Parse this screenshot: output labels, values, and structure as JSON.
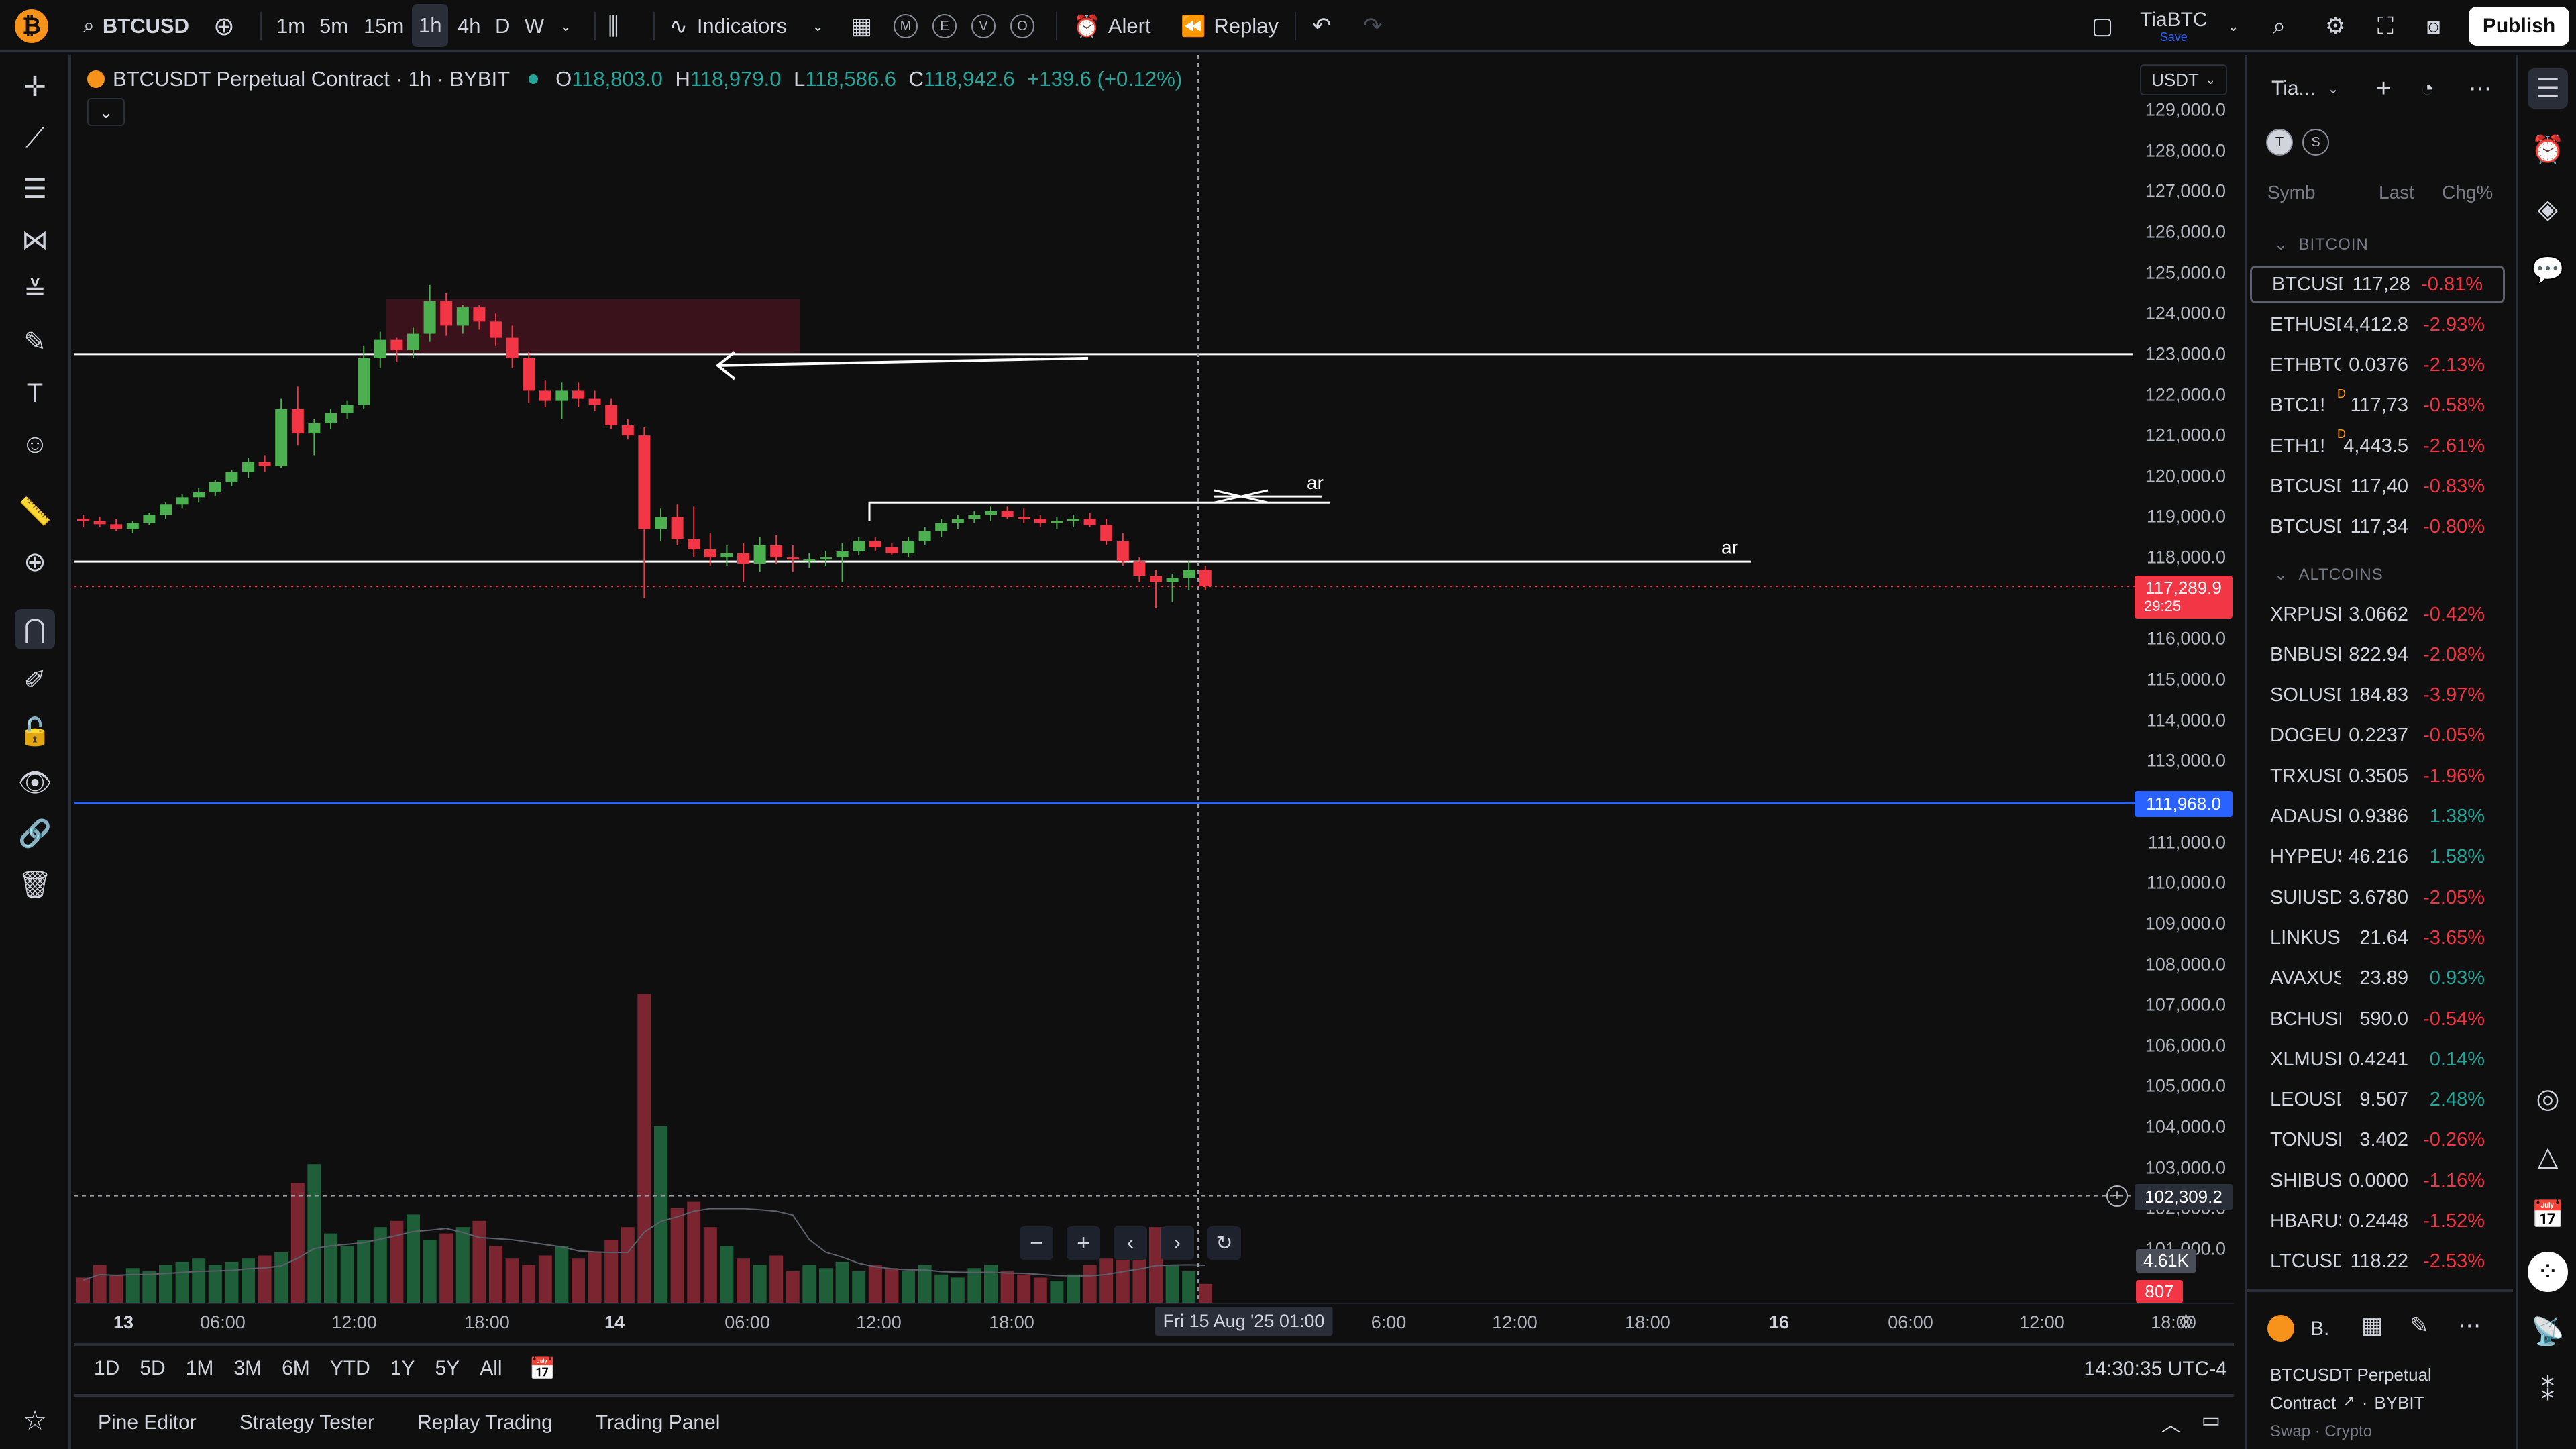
{
  "colors": {
    "up": "#26a69a",
    "down": "#f23645",
    "bg": "#0f0f0f",
    "accent": "#2962ff"
  },
  "topbar": {
    "symbol": "BTCUSD",
    "intervals": [
      "1m",
      "5m",
      "15m",
      "1h",
      "4h",
      "D",
      "W"
    ],
    "selected_interval": "1h",
    "indicators_label": "Indicators",
    "layout_buttons": [
      "M",
      "E",
      "V",
      "O"
    ],
    "alert_label": "Alert",
    "replay_label": "Replay",
    "layout_name": "TiaBTC",
    "layout_status": "Save",
    "publish_label": "Publish"
  },
  "chart": {
    "title": "BTCUSDT Perpetual Contract · 1h · BYBIT",
    "ohlc": {
      "o_label": "O",
      "o": "118,803.0",
      "h_label": "H",
      "h": "118,979.0",
      "l_label": "L",
      "l": "118,586.6",
      "c_label": "C",
      "c": "118,942.6",
      "chg": "+139.6 (+0.12%)"
    },
    "currency": "USDT",
    "price_ticks": [
      "129,000.0",
      "128,000.0",
      "127,000.0",
      "126,000.0",
      "125,000.0",
      "124,000.0",
      "123,000.0",
      "122,000.0",
      "121,000.0",
      "120,000.0",
      "119,000.0",
      "118,000.0",
      "117,000.0",
      "116,000.0",
      "115,000.0",
      "114,000.0",
      "113,000.0",
      "112,000.0",
      "111,000.0",
      "110,000.0",
      "109,000.0",
      "108,000.0",
      "107,000.0",
      "106,000.0",
      "105,000.0",
      "104,000.0",
      "103,000.0",
      "102,000.0",
      "101,000.0"
    ],
    "last_price": "117,289.9",
    "countdown": "29:25",
    "blue_line_price": "111,968.0",
    "crosshair_price": "102,309.2",
    "volume_label": "4.61K",
    "volume_value": "807",
    "drawing_labels": [
      "ar",
      "ar"
    ],
    "time_ticks": [
      {
        "t": "13",
        "bold": true
      },
      {
        "t": "06:00"
      },
      {
        "t": "12:00"
      },
      {
        "t": "18:00"
      },
      {
        "t": "14",
        "bold": true
      },
      {
        "t": "06:00"
      },
      {
        "t": "12:00"
      },
      {
        "t": "18:00"
      },
      {
        "t": "6:00"
      },
      {
        "t": "12:00"
      },
      {
        "t": "18:00"
      },
      {
        "t": "16",
        "bold": true
      },
      {
        "t": "06:00"
      },
      {
        "t": "12:00"
      },
      {
        "t": "18:00"
      }
    ],
    "crosshair_time": "Fri 15 Aug '25   01:00"
  },
  "chart_data": {
    "type": "candlestick",
    "interval": "1h",
    "ylim": [
      101000,
      129000
    ],
    "ohlc": [
      [
        118950,
        119050,
        118750,
        118900
      ],
      [
        118900,
        119000,
        118750,
        118820
      ],
      [
        118820,
        118950,
        118650,
        118700
      ],
      [
        118700,
        118900,
        118600,
        118850
      ],
      [
        118850,
        119100,
        118800,
        119050
      ],
      [
        119050,
        119350,
        118950,
        119300
      ],
      [
        119300,
        119550,
        119200,
        119480
      ],
      [
        119480,
        119700,
        119350,
        119600
      ],
      [
        119600,
        119900,
        119500,
        119850
      ],
      [
        119850,
        120150,
        119750,
        120100
      ],
      [
        120100,
        120450,
        119950,
        120350
      ],
      [
        120350,
        120500,
        120100,
        120250
      ],
      [
        120250,
        121900,
        120200,
        121650
      ],
      [
        121650,
        122200,
        120750,
        121050
      ],
      [
        121050,
        121400,
        120500,
        121300
      ],
      [
        121300,
        121650,
        121150,
        121550
      ],
      [
        121550,
        121850,
        121400,
        121750
      ],
      [
        121750,
        123200,
        121650,
        122900
      ],
      [
        122900,
        123550,
        122650,
        123350
      ],
      [
        123350,
        123400,
        122800,
        123100
      ],
      [
        123100,
        123650,
        122900,
        123500
      ],
      [
        123500,
        124700,
        123300,
        124300
      ],
      [
        124300,
        124500,
        123450,
        123700
      ],
      [
        123700,
        124200,
        123500,
        124150
      ],
      [
        124150,
        124200,
        123600,
        123800
      ],
      [
        123800,
        124000,
        123200,
        123400
      ],
      [
        123400,
        123700,
        122650,
        122900
      ],
      [
        122900,
        123050,
        121800,
        122100
      ],
      [
        122100,
        122350,
        121700,
        121850
      ],
      [
        121850,
        122300,
        121400,
        122100
      ],
      [
        122100,
        122300,
        121700,
        121900
      ],
      [
        121900,
        122100,
        121600,
        121750
      ],
      [
        121750,
        121900,
        121150,
        121250
      ],
      [
        121250,
        121400,
        120900,
        121000
      ],
      [
        121000,
        121200,
        117000,
        118700
      ],
      [
        118700,
        119200,
        118400,
        119000
      ],
      [
        119000,
        119300,
        118300,
        118450
      ],
      [
        118450,
        119250,
        118000,
        118200
      ],
      [
        118200,
        118600,
        117800,
        118000
      ],
      [
        118000,
        118300,
        117800,
        118100
      ],
      [
        118100,
        118350,
        117400,
        117850
      ],
      [
        117850,
        118500,
        117650,
        118300
      ],
      [
        118300,
        118550,
        117850,
        118000
      ],
      [
        118000,
        118300,
        117650,
        117950
      ],
      [
        117950,
        118100,
        117750,
        117950
      ],
      [
        117950,
        118150,
        117800,
        118000
      ],
      [
        118000,
        118350,
        117400,
        118150
      ],
      [
        118150,
        118500,
        118050,
        118400
      ],
      [
        118400,
        118500,
        118150,
        118250
      ],
      [
        118250,
        118350,
        118050,
        118100
      ],
      [
        118100,
        118500,
        118000,
        118400
      ],
      [
        118400,
        118750,
        118300,
        118650
      ],
      [
        118650,
        118950,
        118500,
        118850
      ],
      [
        118850,
        119050,
        118700,
        118950
      ],
      [
        118950,
        119150,
        118850,
        119050
      ],
      [
        119050,
        119250,
        118900,
        119150
      ],
      [
        119150,
        119250,
        118950,
        119000
      ],
      [
        119000,
        119200,
        118850,
        118950
      ],
      [
        118950,
        119050,
        118750,
        118850
      ],
      [
        118850,
        119000,
        118700,
        118900
      ],
      [
        118900,
        119050,
        118750,
        118950
      ],
      [
        118950,
        119100,
        118750,
        118800
      ],
      [
        118800,
        118950,
        118300,
        118400
      ],
      [
        118400,
        118600,
        117800,
        117900
      ],
      [
        117900,
        118000,
        117400,
        117550
      ],
      [
        117550,
        117700,
        116750,
        117400
      ],
      [
        117400,
        117600,
        116900,
        117500
      ],
      [
        117500,
        117900,
        117200,
        117700
      ],
      [
        117700,
        117800,
        117200,
        117290
      ]
    ],
    "volume": [
      8,
      12,
      9,
      11,
      10,
      12,
      13,
      14,
      12,
      13,
      14,
      15,
      16,
      38,
      44,
      22,
      18,
      20,
      24,
      26,
      28,
      20,
      22,
      24,
      26,
      18,
      14,
      12,
      15,
      18,
      14,
      16,
      20,
      24,
      98,
      56,
      30,
      32,
      24,
      18,
      14,
      12,
      15,
      10,
      12,
      11,
      13,
      10,
      12,
      11,
      10,
      12,
      9,
      8,
      11,
      12,
      10,
      9,
      8,
      7,
      9,
      12,
      14,
      18,
      20,
      24,
      12,
      10,
      6
    ],
    "series_names": []
  },
  "bottom": {
    "ranges": [
      "1D",
      "5D",
      "1M",
      "3M",
      "6M",
      "YTD",
      "1Y",
      "5Y",
      "All"
    ],
    "clock": "14:30:35 UTC-4",
    "tabs": [
      "Pine Editor",
      "Strategy Tester",
      "Replay Trading",
      "Trading Panel"
    ]
  },
  "watchlist": {
    "title": "Tia...",
    "tags": [
      "T",
      "S"
    ],
    "col_symbol": "Symb",
    "col_last": "Last",
    "col_chg": "Chg%",
    "section1": "BITCOIN",
    "section2": "ALTCOINS",
    "rows1": [
      {
        "s": "BTCUSD",
        "l": "117,28",
        "c": "-0.81%",
        "dir": "neg",
        "sel": true
      },
      {
        "s": "ETHUSD",
        "l": "4,412.8",
        "c": "-2.93%",
        "dir": "neg"
      },
      {
        "s": "ETHBTC",
        "l": "0.0376",
        "c": "-2.13%",
        "dir": "neg"
      },
      {
        "s": "BTC1!",
        "l": "117,73",
        "c": "-0.58%",
        "dir": "neg",
        "flag": "D"
      },
      {
        "s": "ETH1!",
        "l": "4,443.5",
        "c": "-2.61%",
        "dir": "neg",
        "flag": "D"
      },
      {
        "s": "BTCUSD",
        "l": "117,40",
        "c": "-0.83%",
        "dir": "neg"
      },
      {
        "s": "BTCUSD",
        "l": "117,34",
        "c": "-0.80%",
        "dir": "neg"
      }
    ],
    "rows2": [
      {
        "s": "XRPUSD",
        "l": "3.0662",
        "c": "-0.42%",
        "dir": "neg"
      },
      {
        "s": "BNBUSD",
        "l": "822.94",
        "c": "-2.08%",
        "dir": "neg"
      },
      {
        "s": "SOLUSD",
        "l": "184.83",
        "c": "-3.97%",
        "dir": "neg"
      },
      {
        "s": "DOGEUS",
        "l": "0.2237",
        "c": "-0.05%",
        "dir": "neg"
      },
      {
        "s": "TRXUSD",
        "l": "0.3505",
        "c": "-1.96%",
        "dir": "neg"
      },
      {
        "s": "ADAUSD",
        "l": "0.9386",
        "c": "1.38%",
        "dir": "pos"
      },
      {
        "s": "HYPEUS",
        "l": "46.216",
        "c": "1.58%",
        "dir": "pos"
      },
      {
        "s": "SUIUSD",
        "l": "3.6780",
        "c": "-2.05%",
        "dir": "neg"
      },
      {
        "s": "LINKUSD",
        "l": "21.64",
        "c": "-3.65%",
        "dir": "neg"
      },
      {
        "s": "AVAXUS",
        "l": "23.89",
        "c": "0.93%",
        "dir": "pos"
      },
      {
        "s": "BCHUSD",
        "l": "590.0",
        "c": "-0.54%",
        "dir": "neg"
      },
      {
        "s": "XLMUSD",
        "l": "0.4241",
        "c": "0.14%",
        "dir": "pos"
      },
      {
        "s": "LEOUSD",
        "l": "9.507",
        "c": "2.48%",
        "dir": "pos"
      },
      {
        "s": "TONUSD",
        "l": "3.402",
        "c": "-0.26%",
        "dir": "neg"
      },
      {
        "s": "SHIBUS",
        "l": "0.0000",
        "c": "-1.16%",
        "dir": "neg"
      },
      {
        "s": "HBARUS",
        "l": "0.2448",
        "c": "-1.52%",
        "dir": "neg"
      },
      {
        "s": "LTCUSD",
        "l": "118.22",
        "c": "-2.53%",
        "dir": "neg"
      }
    ],
    "detail": {
      "short": "B.",
      "name": "BTCUSDT Perpetual",
      "name2": "Contract",
      "exchange": "BYBIT",
      "type": "Swap · Crypto"
    }
  }
}
